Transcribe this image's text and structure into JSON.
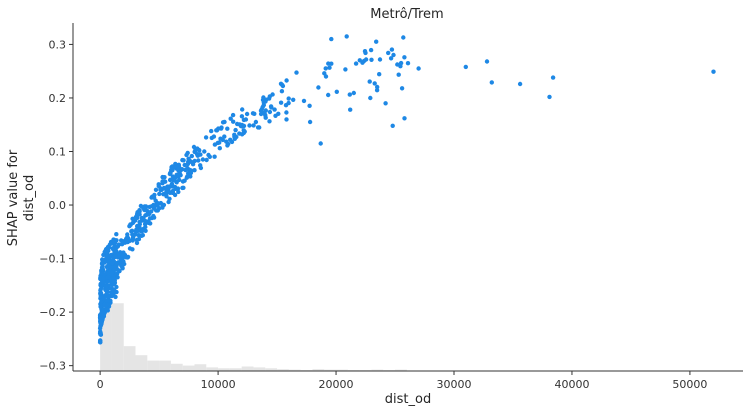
{
  "chart_data": {
    "type": "scatter",
    "title": "Metrô/Trem",
    "xlabel": "dist_od",
    "ylabel_lines": [
      "SHAP value for",
      "dist_od"
    ],
    "xlim": [
      -2300,
      54500
    ],
    "ylim": [
      -0.31,
      0.34
    ],
    "x_ticks": [
      0,
      10000,
      20000,
      30000,
      40000,
      50000
    ],
    "y_ticks": [
      -0.3,
      -0.2,
      -0.1,
      0.0,
      0.1,
      0.2,
      0.3
    ],
    "x_tick_labels": [
      "0",
      "10000",
      "20000",
      "30000",
      "40000",
      "50000"
    ],
    "y_tick_labels": [
      "−0.3",
      "−0.2",
      "−0.1",
      "0.0",
      "0.1",
      "0.2",
      "0.3"
    ],
    "point_color": "#1e88e5",
    "histogram_color": "#e5e5e5",
    "grid": false,
    "legend": "none",
    "trend_anchors": [
      [
        0,
        -0.2
      ],
      [
        200,
        -0.155
      ],
      [
        400,
        -0.145
      ],
      [
        700,
        -0.135
      ],
      [
        1000,
        -0.125
      ],
      [
        1500,
        -0.105
      ],
      [
        2000,
        -0.085
      ],
      [
        3000,
        -0.045
      ],
      [
        4000,
        -0.015
      ],
      [
        5000,
        0.015
      ],
      [
        6000,
        0.04
      ],
      [
        7000,
        0.06
      ],
      [
        8000,
        0.085
      ],
      [
        9000,
        0.1
      ],
      [
        10000,
        0.12
      ],
      [
        12000,
        0.15
      ],
      [
        14000,
        0.18
      ],
      [
        16000,
        0.205
      ],
      [
        18000,
        0.225
      ],
      [
        20000,
        0.24
      ],
      [
        22000,
        0.25
      ],
      [
        24000,
        0.255
      ],
      [
        26000,
        0.26
      ]
    ],
    "outliers": [
      [
        15800,
        0.16
      ],
      [
        17800,
        0.155
      ],
      [
        18700,
        0.115
      ],
      [
        24800,
        0.148
      ],
      [
        25800,
        0.162
      ],
      [
        21200,
        0.178
      ],
      [
        19600,
        0.31
      ],
      [
        20900,
        0.315
      ],
      [
        23400,
        0.305
      ],
      [
        25700,
        0.313
      ],
      [
        31000,
        0.258
      ],
      [
        32800,
        0.268
      ],
      [
        33200,
        0.229
      ],
      [
        35600,
        0.226
      ],
      [
        38100,
        0.202
      ],
      [
        38400,
        0.238
      ],
      [
        52000,
        0.249
      ],
      [
        27000,
        0.255
      ],
      [
        26100,
        0.265
      ],
      [
        25600,
        0.218
      ],
      [
        24200,
        0.19
      ],
      [
        22900,
        0.2
      ]
    ],
    "histogram": {
      "bin_edges": [
        0,
        1000,
        2000,
        3000,
        4000,
        5000,
        6000,
        7000,
        8000,
        9000,
        10000,
        11000,
        12000,
        13000,
        14000,
        15000,
        16000,
        17000,
        18000,
        19000,
        20000,
        21000,
        22000,
        23000,
        24000,
        25000,
        26000,
        27000,
        30000,
        35000,
        40000,
        45000,
        50000,
        53000
      ],
      "counts": [
        160,
        150,
        55,
        35,
        23,
        23,
        16,
        12,
        15,
        8,
        6,
        6,
        10,
        8,
        6,
        4,
        3,
        2,
        4,
        3,
        3,
        2,
        2,
        3,
        2,
        3,
        1,
        1,
        1,
        1,
        1,
        0,
        1
      ]
    },
    "histogram_max_height": 0.135
  }
}
